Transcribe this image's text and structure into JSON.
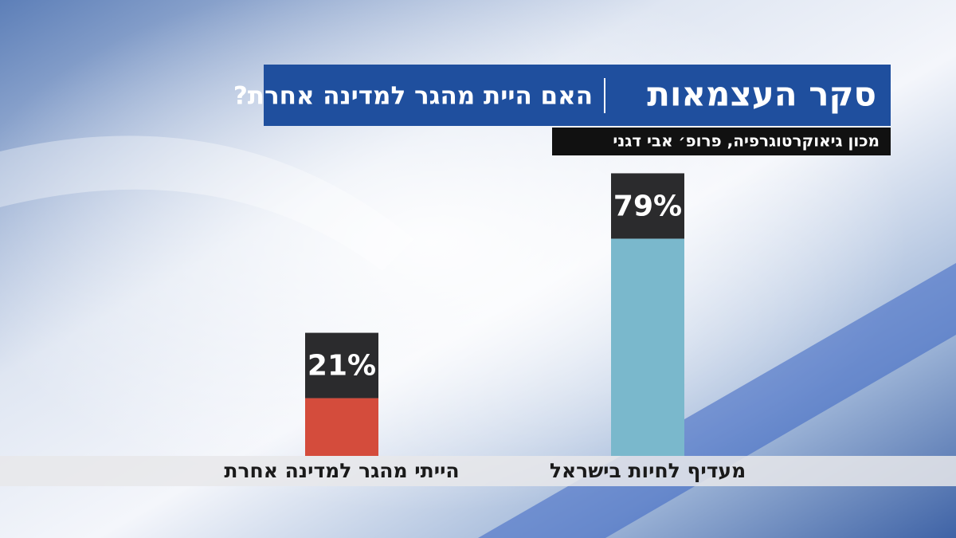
{
  "chart_data": {
    "type": "bar",
    "title": "סקר העצמאות",
    "subtitle": "האם היית מהגר למדינה אחרת?",
    "source": "מכון גיאוקרטוגרפיה, פרופ׳ אבי דגני",
    "categories": [
      "הייתי מהגר למדינה אחרת",
      "מעדיף לחיות בישראל"
    ],
    "values": [
      21,
      79
    ],
    "value_labels": [
      "21%",
      "79%"
    ],
    "colors": [
      "#d44c3c",
      "#7ab8cc"
    ]
  }
}
